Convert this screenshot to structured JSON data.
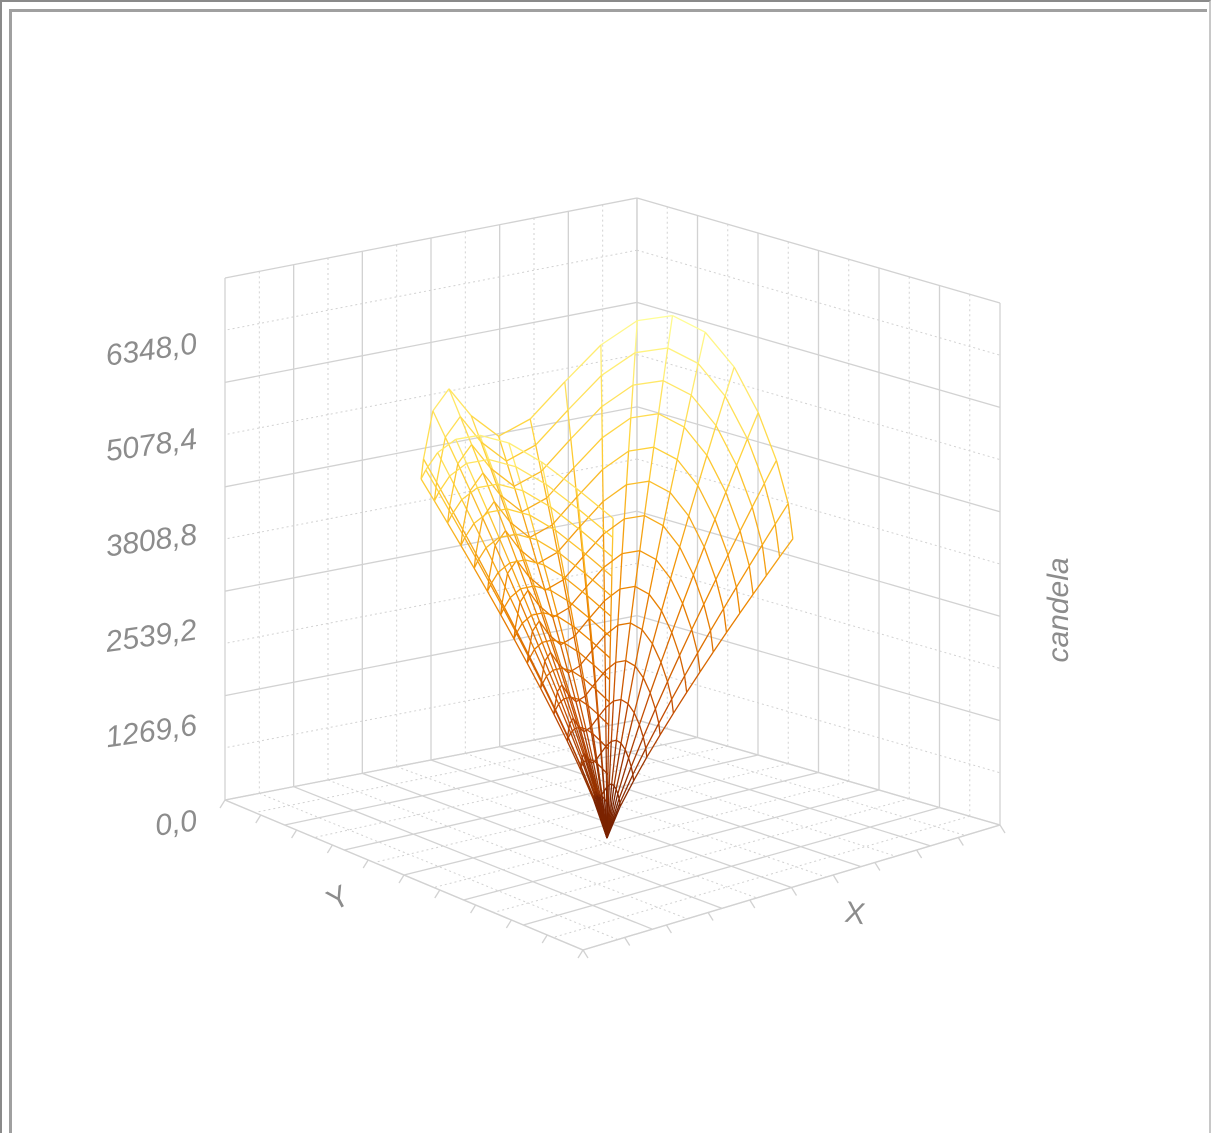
{
  "chart_data": {
    "type": "surface-3d-wireframe",
    "zlabel": "candela",
    "xlabel": "X",
    "ylabel": "Y",
    "z_ticks": [
      "0,0",
      "1269,6",
      "2539,2",
      "3808,8",
      "5078,4",
      "6348,0"
    ],
    "zlim": [
      0,
      6348
    ],
    "z_max_observed": 6350,
    "grid": true,
    "colormap": [
      "#6b1a00",
      "#c24a00",
      "#f08a00",
      "#ffd23a",
      "#ffff99"
    ]
  }
}
